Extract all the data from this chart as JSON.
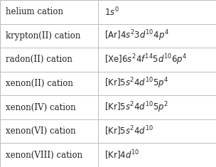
{
  "rows": [
    [
      "helium cation",
      "$1s^{0}$"
    ],
    [
      "krypton(II) cation",
      "$[\\mathrm{Ar}]4s^{2}3d^{10}4p^{4}$"
    ],
    [
      "radon(II) cation",
      "$[\\mathrm{Xe}]6s^{2}4f^{14}5d^{10}6p^{4}$"
    ],
    [
      "xenon(II) cation",
      "$[\\mathrm{Kr}]5s^{2}4d^{10}5p^{4}$"
    ],
    [
      "xenon(IV) cation",
      "$[\\mathrm{Kr}]5s^{2}4d^{10}5p^{2}$"
    ],
    [
      "xenon(VI) cation",
      "$[\\mathrm{Kr}]5s^{2}4d^{10}$"
    ],
    [
      "xenon(VIII) cation",
      "$[\\mathrm{Kr}]4d^{10}$"
    ]
  ],
  "col_split": 0.455,
  "background_color": "#f8f8f8",
  "line_color": "#bbbbbb",
  "text_color": "#222222",
  "font_size": 8.5
}
